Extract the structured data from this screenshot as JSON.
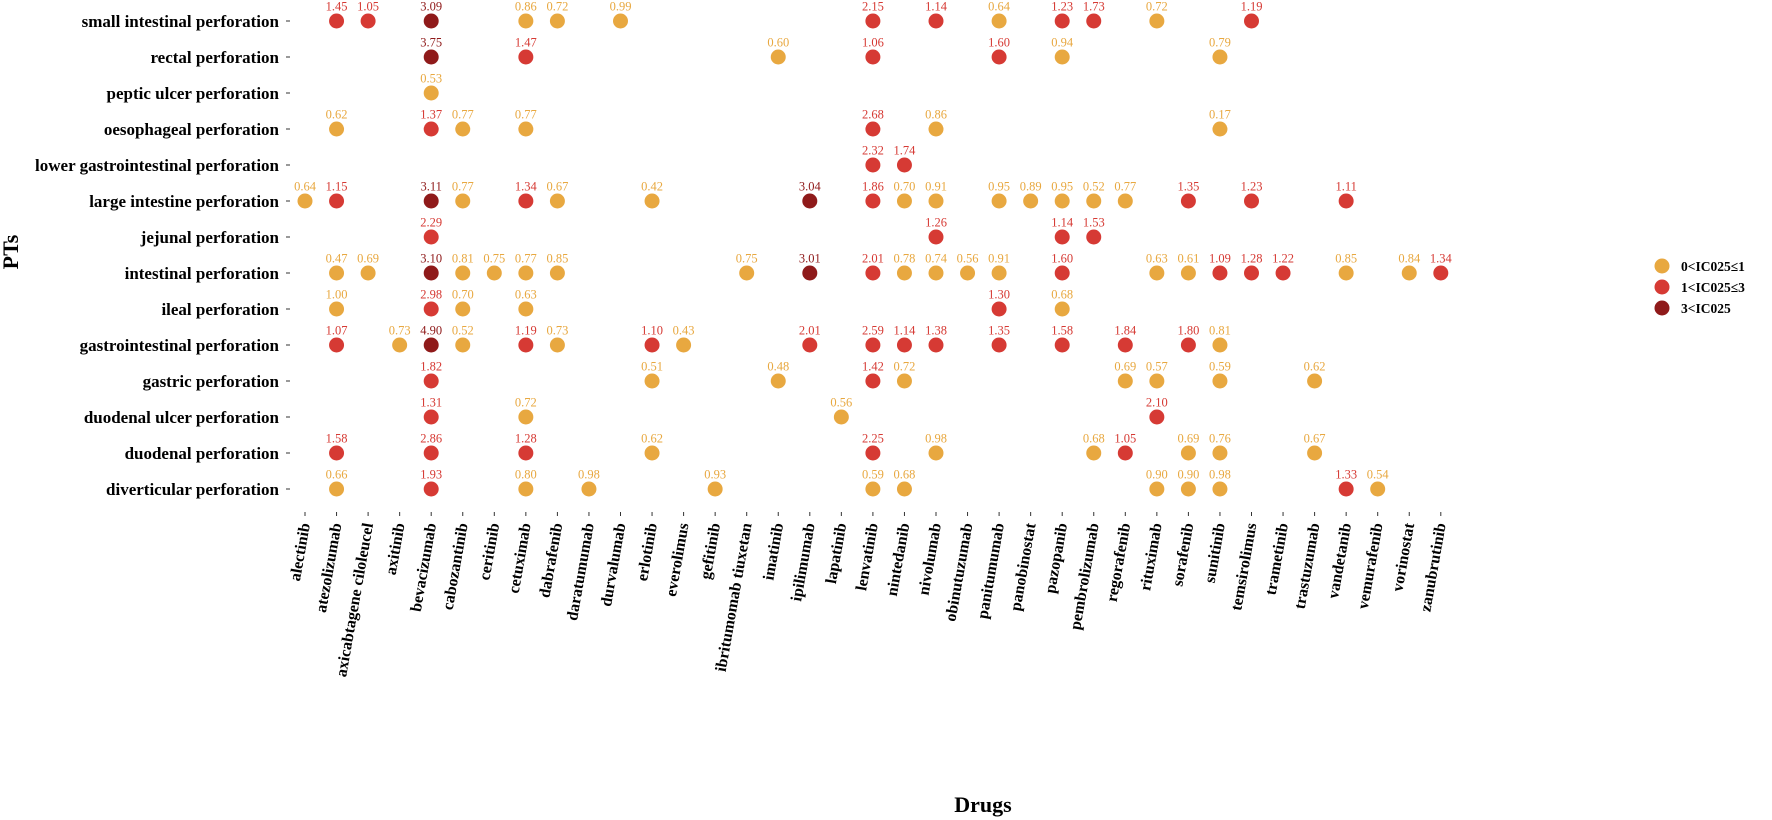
{
  "chart_data": {
    "type": "scatter",
    "xlabel": "Drugs",
    "ylabel": "PTs",
    "x_categories": [
      "alectinib",
      "atezolizumab",
      "axicabtagene ciloleucel",
      "axitinib",
      "bevacizumab",
      "cabozantinib",
      "ceritinib",
      "cetuximab",
      "dabrafenib",
      "daratumumab",
      "durvalumab",
      "erlotinib",
      "everolimus",
      "gefitinib",
      "ibritumomab tiuxetan",
      "imatinib",
      "ipilimumab",
      "lapatinib",
      "lenvatinib",
      "nintedanib",
      "nivolumab",
      "obinutuzumab",
      "panitumumab",
      "panobinostat",
      "pazopanib",
      "pembrolizumab",
      "regorafenib",
      "rituximab",
      "sorafenib",
      "sunitinib",
      "temsirolimus",
      "trametinib",
      "trastuzumab",
      "vandetanib",
      "vemurafenib",
      "vorinostat",
      "zanubrutinib"
    ],
    "y_categories": [
      "small intestinal perforation",
      "rectal perforation",
      "peptic ulcer perforation",
      "oesophageal perforation",
      "lower gastrointestinal perforation",
      "large intestine perforation",
      "jejunal perforation",
      "intestinal perforation",
      "ileal perforation",
      "gastrointestinal perforation",
      "gastric perforation",
      "duodenal ulcer perforation",
      "duodenal perforation",
      "diverticular perforation"
    ],
    "legend": {
      "position": "right",
      "entries": [
        {
          "label": "0<IC025≤1",
          "color": "#E8A840"
        },
        {
          "label": "1<IC025≤3",
          "color": "#D63A34"
        },
        {
          "label": "3<IC025",
          "color": "#8F1A1A"
        }
      ]
    },
    "points": [
      {
        "pt": "small intestinal perforation",
        "drug": "atezolizumab",
        "value": "1.45"
      },
      {
        "pt": "small intestinal perforation",
        "drug": "axicabtagene ciloleucel",
        "value": "1.05"
      },
      {
        "pt": "small intestinal perforation",
        "drug": "bevacizumab",
        "value": "3.09"
      },
      {
        "pt": "small intestinal perforation",
        "drug": "cetuximab",
        "value": "0.86"
      },
      {
        "pt": "small intestinal perforation",
        "drug": "dabrafenib",
        "value": "0.72"
      },
      {
        "pt": "small intestinal perforation",
        "drug": "durvalumab",
        "value": "0.99"
      },
      {
        "pt": "small intestinal perforation",
        "drug": "lenvatinib",
        "value": "2.15"
      },
      {
        "pt": "small intestinal perforation",
        "drug": "nivolumab",
        "value": "1.14"
      },
      {
        "pt": "small intestinal perforation",
        "drug": "panitumumab",
        "value": "0.64"
      },
      {
        "pt": "small intestinal perforation",
        "drug": "pazopanib",
        "value": "1.23"
      },
      {
        "pt": "small intestinal perforation",
        "drug": "pembrolizumab",
        "value": "1.73"
      },
      {
        "pt": "small intestinal perforation",
        "drug": "rituximab",
        "value": "0.72"
      },
      {
        "pt": "small intestinal perforation",
        "drug": "temsirolimus",
        "value": "1.19"
      },
      {
        "pt": "rectal perforation",
        "drug": "bevacizumab",
        "value": "3.75"
      },
      {
        "pt": "rectal perforation",
        "drug": "cetuximab",
        "value": "1.47"
      },
      {
        "pt": "rectal perforation",
        "drug": "imatinib",
        "value": "0.60"
      },
      {
        "pt": "rectal perforation",
        "drug": "lenvatinib",
        "value": "1.06"
      },
      {
        "pt": "rectal perforation",
        "drug": "panitumumab",
        "value": "1.60"
      },
      {
        "pt": "rectal perforation",
        "drug": "pazopanib",
        "value": "0.94"
      },
      {
        "pt": "rectal perforation",
        "drug": "sunitinib",
        "value": "0.79"
      },
      {
        "pt": "peptic ulcer perforation",
        "drug": "bevacizumab",
        "value": "0.53"
      },
      {
        "pt": "oesophageal perforation",
        "drug": "atezolizumab",
        "value": "0.62"
      },
      {
        "pt": "oesophageal perforation",
        "drug": "bevacizumab",
        "value": "1.37"
      },
      {
        "pt": "oesophageal perforation",
        "drug": "cabozantinib",
        "value": "0.77"
      },
      {
        "pt": "oesophageal perforation",
        "drug": "cetuximab",
        "value": "0.77"
      },
      {
        "pt": "oesophageal perforation",
        "drug": "lenvatinib",
        "value": "2.68"
      },
      {
        "pt": "oesophageal perforation",
        "drug": "nivolumab",
        "value": "0.86"
      },
      {
        "pt": "oesophageal perforation",
        "drug": "sunitinib",
        "value": "0.17"
      },
      {
        "pt": "lower gastrointestinal perforation",
        "drug": "lenvatinib",
        "value": "2.32"
      },
      {
        "pt": "lower gastrointestinal perforation",
        "drug": "nintedanib",
        "value": "1.74"
      },
      {
        "pt": "large intestine perforation",
        "drug": "alectinib",
        "value": "0.64"
      },
      {
        "pt": "large intestine perforation",
        "drug": "atezolizumab",
        "value": "1.15"
      },
      {
        "pt": "large intestine perforation",
        "drug": "bevacizumab",
        "value": "3.11"
      },
      {
        "pt": "large intestine perforation",
        "drug": "cabozantinib",
        "value": "0.77"
      },
      {
        "pt": "large intestine perforation",
        "drug": "cetuximab",
        "value": "1.34"
      },
      {
        "pt": "large intestine perforation",
        "drug": "dabrafenib",
        "value": "0.67"
      },
      {
        "pt": "large intestine perforation",
        "drug": "erlotinib",
        "value": "0.42"
      },
      {
        "pt": "large intestine perforation",
        "drug": "ipilimumab",
        "value": "3.04"
      },
      {
        "pt": "large intestine perforation",
        "drug": "lenvatinib",
        "value": "1.86"
      },
      {
        "pt": "large intestine perforation",
        "drug": "nintedanib",
        "value": "0.70"
      },
      {
        "pt": "large intestine perforation",
        "drug": "nivolumab",
        "value": "0.91"
      },
      {
        "pt": "large intestine perforation",
        "drug": "panitumumab",
        "value": "0.95"
      },
      {
        "pt": "large intestine perforation",
        "drug": "panobinostat",
        "value": "0.89"
      },
      {
        "pt": "large intestine perforation",
        "drug": "pazopanib",
        "value": "0.95"
      },
      {
        "pt": "large intestine perforation",
        "drug": "pembrolizumab",
        "value": "0.52"
      },
      {
        "pt": "large intestine perforation",
        "drug": "regorafenib",
        "value": "0.77"
      },
      {
        "pt": "large intestine perforation",
        "drug": "sorafenib",
        "value": "1.35"
      },
      {
        "pt": "large intestine perforation",
        "drug": "temsirolimus",
        "value": "1.23"
      },
      {
        "pt": "large intestine perforation",
        "drug": "vandetanib",
        "value": "1.11"
      },
      {
        "pt": "jejunal perforation",
        "drug": "bevacizumab",
        "value": "2.29"
      },
      {
        "pt": "jejunal perforation",
        "drug": "nivolumab",
        "value": "1.26"
      },
      {
        "pt": "jejunal perforation",
        "drug": "pazopanib",
        "value": "1.14"
      },
      {
        "pt": "jejunal perforation",
        "drug": "pembrolizumab",
        "value": "1.53"
      },
      {
        "pt": "intestinal perforation",
        "drug": "atezolizumab",
        "value": "0.47"
      },
      {
        "pt": "intestinal perforation",
        "drug": "axicabtagene ciloleucel",
        "value": "0.69"
      },
      {
        "pt": "intestinal perforation",
        "drug": "bevacizumab",
        "value": "3.10"
      },
      {
        "pt": "intestinal perforation",
        "drug": "cabozantinib",
        "value": "0.81"
      },
      {
        "pt": "intestinal perforation",
        "drug": "ceritinib",
        "value": "0.75"
      },
      {
        "pt": "intestinal perforation",
        "drug": "cetuximab",
        "value": "0.77"
      },
      {
        "pt": "intestinal perforation",
        "drug": "dabrafenib",
        "value": "0.85"
      },
      {
        "pt": "intestinal perforation",
        "drug": "ibritumomab tiuxetan",
        "value": "0.75"
      },
      {
        "pt": "intestinal perforation",
        "drug": "ipilimumab",
        "value": "3.01"
      },
      {
        "pt": "intestinal perforation",
        "drug": "lenvatinib",
        "value": "2.01"
      },
      {
        "pt": "intestinal perforation",
        "drug": "nintedanib",
        "value": "0.78"
      },
      {
        "pt": "intestinal perforation",
        "drug": "nivolumab",
        "value": "0.74"
      },
      {
        "pt": "intestinal perforation",
        "drug": "obinutuzumab",
        "value": "0.56"
      },
      {
        "pt": "intestinal perforation",
        "drug": "panitumumab",
        "value": "0.91"
      },
      {
        "pt": "intestinal perforation",
        "drug": "pazopanib",
        "value": "1.60"
      },
      {
        "pt": "intestinal perforation",
        "drug": "rituximab",
        "value": "0.63"
      },
      {
        "pt": "intestinal perforation",
        "drug": "sorafenib",
        "value": "0.61"
      },
      {
        "pt": "intestinal perforation",
        "drug": "sunitinib",
        "value": "1.09"
      },
      {
        "pt": "intestinal perforation",
        "drug": "temsirolimus",
        "value": "1.28"
      },
      {
        "pt": "intestinal perforation",
        "drug": "trametinib",
        "value": "1.22"
      },
      {
        "pt": "intestinal perforation",
        "drug": "vandetanib",
        "value": "0.85"
      },
      {
        "pt": "intestinal perforation",
        "drug": "vorinostat",
        "value": "0.84"
      },
      {
        "pt": "intestinal perforation",
        "drug": "zanubrutinib",
        "value": "1.34"
      },
      {
        "pt": "ileal perforation",
        "drug": "atezolizumab",
        "value": "1.00"
      },
      {
        "pt": "ileal perforation",
        "drug": "bevacizumab",
        "value": "2.98"
      },
      {
        "pt": "ileal perforation",
        "drug": "cabozantinib",
        "value": "0.70"
      },
      {
        "pt": "ileal perforation",
        "drug": "cetuximab",
        "value": "0.63"
      },
      {
        "pt": "ileal perforation",
        "drug": "panitumumab",
        "value": "1.30"
      },
      {
        "pt": "ileal perforation",
        "drug": "pazopanib",
        "value": "0.68"
      },
      {
        "pt": "gastrointestinal perforation",
        "drug": "atezolizumab",
        "value": "1.07"
      },
      {
        "pt": "gastrointestinal perforation",
        "drug": "axitinib",
        "value": "0.73"
      },
      {
        "pt": "gastrointestinal perforation",
        "drug": "bevacizumab",
        "value": "4.90"
      },
      {
        "pt": "gastrointestinal perforation",
        "drug": "cabozantinib",
        "value": "0.52"
      },
      {
        "pt": "gastrointestinal perforation",
        "drug": "cetuximab",
        "value": "1.19"
      },
      {
        "pt": "gastrointestinal perforation",
        "drug": "dabrafenib",
        "value": "0.73"
      },
      {
        "pt": "gastrointestinal perforation",
        "drug": "erlotinib",
        "value": "1.10"
      },
      {
        "pt": "gastrointestinal perforation",
        "drug": "everolimus",
        "value": "0.43"
      },
      {
        "pt": "gastrointestinal perforation",
        "drug": "ipilimumab",
        "value": "2.01"
      },
      {
        "pt": "gastrointestinal perforation",
        "drug": "lenvatinib",
        "value": "2.59"
      },
      {
        "pt": "gastrointestinal perforation",
        "drug": "nintedanib",
        "value": "1.14"
      },
      {
        "pt": "gastrointestinal perforation",
        "drug": "nivolumab",
        "value": "1.38"
      },
      {
        "pt": "gastrointestinal perforation",
        "drug": "panitumumab",
        "value": "1.35"
      },
      {
        "pt": "gastrointestinal perforation",
        "drug": "pazopanib",
        "value": "1.58"
      },
      {
        "pt": "gastrointestinal perforation",
        "drug": "regorafenib",
        "value": "1.84"
      },
      {
        "pt": "gastrointestinal perforation",
        "drug": "sorafenib",
        "value": "1.80"
      },
      {
        "pt": "gastrointestinal perforation",
        "drug": "sunitinib",
        "value": "0.81"
      },
      {
        "pt": "gastric perforation",
        "drug": "bevacizumab",
        "value": "1.82"
      },
      {
        "pt": "gastric perforation",
        "drug": "erlotinib",
        "value": "0.51"
      },
      {
        "pt": "gastric perforation",
        "drug": "imatinib",
        "value": "0.48"
      },
      {
        "pt": "gastric perforation",
        "drug": "lenvatinib",
        "value": "1.42"
      },
      {
        "pt": "gastric perforation",
        "drug": "nintedanib",
        "value": "0.72"
      },
      {
        "pt": "gastric perforation",
        "drug": "regorafenib",
        "value": "0.69"
      },
      {
        "pt": "gastric perforation",
        "drug": "rituximab",
        "value": "0.57"
      },
      {
        "pt": "gastric perforation",
        "drug": "sunitinib",
        "value": "0.59"
      },
      {
        "pt": "gastric perforation",
        "drug": "trastuzumab",
        "value": "0.62"
      },
      {
        "pt": "duodenal ulcer perforation",
        "drug": "bevacizumab",
        "value": "1.31"
      },
      {
        "pt": "duodenal ulcer perforation",
        "drug": "cetuximab",
        "value": "0.72"
      },
      {
        "pt": "duodenal ulcer perforation",
        "drug": "lapatinib",
        "value": "0.56"
      },
      {
        "pt": "duodenal ulcer perforation",
        "drug": "rituximab",
        "value": "2.10"
      },
      {
        "pt": "duodenal perforation",
        "drug": "atezolizumab",
        "value": "1.58"
      },
      {
        "pt": "duodenal perforation",
        "drug": "bevacizumab",
        "value": "2.86"
      },
      {
        "pt": "duodenal perforation",
        "drug": "cetuximab",
        "value": "1.28"
      },
      {
        "pt": "duodenal perforation",
        "drug": "erlotinib",
        "value": "0.62"
      },
      {
        "pt": "duodenal perforation",
        "drug": "lenvatinib",
        "value": "2.25"
      },
      {
        "pt": "duodenal perforation",
        "drug": "nivolumab",
        "value": "0.98"
      },
      {
        "pt": "duodenal perforation",
        "drug": "pembrolizumab",
        "value": "0.68"
      },
      {
        "pt": "duodenal perforation",
        "drug": "regorafenib",
        "value": "1.05"
      },
      {
        "pt": "duodenal perforation",
        "drug": "sorafenib",
        "value": "0.69"
      },
      {
        "pt": "duodenal perforation",
        "drug": "sunitinib",
        "value": "0.76"
      },
      {
        "pt": "duodenal perforation",
        "drug": "trastuzumab",
        "value": "0.67"
      },
      {
        "pt": "diverticular perforation",
        "drug": "atezolizumab",
        "value": "0.66"
      },
      {
        "pt": "diverticular perforation",
        "drug": "bevacizumab",
        "value": "1.93"
      },
      {
        "pt": "diverticular perforation",
        "drug": "cetuximab",
        "value": "0.80"
      },
      {
        "pt": "diverticular perforation",
        "drug": "daratumumab",
        "value": "0.98"
      },
      {
        "pt": "diverticular perforation",
        "drug": "gefitinib",
        "value": "0.93"
      },
      {
        "pt": "diverticular perforation",
        "drug": "lenvatinib",
        "value": "0.59"
      },
      {
        "pt": "diverticular perforation",
        "drug": "nintedanib",
        "value": "0.68"
      },
      {
        "pt": "diverticular perforation",
        "drug": "rituximab",
        "value": "0.90"
      },
      {
        "pt": "diverticular perforation",
        "drug": "sorafenib",
        "value": "0.90"
      },
      {
        "pt": "diverticular perforation",
        "drug": "sunitinib",
        "value": "0.98"
      },
      {
        "pt": "diverticular perforation",
        "drug": "vandetanib",
        "value": "1.33"
      },
      {
        "pt": "diverticular perforation",
        "drug": "vemurafenib",
        "value": "0.54"
      }
    ]
  }
}
